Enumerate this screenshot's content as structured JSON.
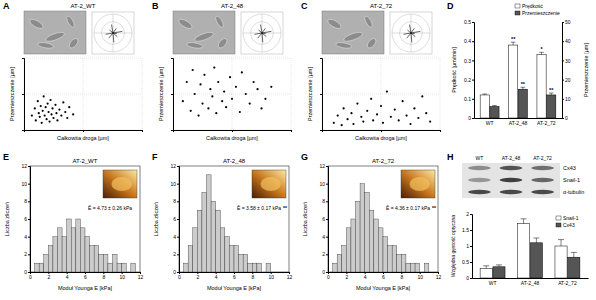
{
  "chart_data": [
    {
      "type": "scatter",
      "title": "AT-2_WT",
      "annotations": [
        "A"
      ],
      "xlabel": "Całkowita droga [µm]",
      "ylabel": "Przemieszczenie [µm]",
      "x": [
        40,
        55,
        60,
        70,
        75,
        80,
        85,
        90,
        95,
        100,
        105,
        110,
        115,
        120,
        125,
        130,
        135,
        140,
        145,
        150,
        160,
        165,
        170,
        180,
        190,
        200,
        210,
        220,
        230,
        250
      ],
      "values": [
        60,
        90,
        40,
        120,
        70,
        55,
        100,
        30,
        80,
        140,
        60,
        95,
        45,
        110,
        75,
        35,
        125,
        65,
        90,
        50,
        105,
        70,
        40,
        85,
        60,
        115,
        75,
        50,
        95,
        65
      ],
      "color": "#000000",
      "marker": "circle",
      "xlim": [
        0,
        600
      ],
      "ylim": [
        0,
        300
      ],
      "xticks": [
        0,
        300,
        600
      ],
      "yticks": [
        0,
        150,
        300
      ],
      "grid": true,
      "tick_labels": false
    },
    {
      "type": "scatter",
      "title": "AT-2_48",
      "annotations": [
        "B"
      ],
      "xlabel": "Całkowita droga [µm]",
      "ylabel": "Przemieszczenie [µm]",
      "x": [
        50,
        70,
        90,
        100,
        110,
        130,
        140,
        150,
        160,
        180,
        190,
        200,
        210,
        220,
        230,
        250,
        260,
        270,
        290,
        300,
        320,
        340,
        350,
        370,
        390,
        410,
        430,
        450,
        470,
        500
      ],
      "values": [
        120,
        200,
        80,
        250,
        150,
        60,
        190,
        110,
        230,
        90,
        170,
        140,
        260,
        70,
        200,
        120,
        160,
        95,
        220,
        130,
        180,
        75,
        240,
        150,
        110,
        200,
        170,
        90,
        130,
        180
      ],
      "color": "#000000",
      "marker": "circle",
      "xlim": [
        0,
        600
      ],
      "ylim": [
        0,
        300
      ],
      "xticks": [
        0,
        300,
        600
      ],
      "yticks": [
        0,
        150,
        300
      ],
      "grid": true,
      "tick_labels": false
    },
    {
      "type": "scatter",
      "title": "AT-2_72",
      "annotations": [
        "C"
      ],
      "xlabel": "Całkowita droga [µm]",
      "ylabel": "Przemieszczenie [µm]",
      "x": [
        60,
        80,
        100,
        110,
        130,
        150,
        160,
        180,
        200,
        210,
        230,
        250,
        260,
        280,
        300,
        310,
        330,
        350,
        370,
        390,
        410,
        430,
        450,
        470,
        490,
        510,
        530,
        550
      ],
      "values": [
        30,
        60,
        20,
        90,
        45,
        70,
        25,
        110,
        55,
        35,
        80,
        130,
        40,
        65,
        100,
        30,
        160,
        55,
        85,
        40,
        120,
        60,
        25,
        90,
        50,
        140,
        70,
        35
      ],
      "color": "#000000",
      "marker": "circle",
      "xlim": [
        0,
        600
      ],
      "ylim": [
        0,
        300
      ],
      "xticks": [
        0,
        300,
        600
      ],
      "yticks": [
        0,
        150,
        300
      ],
      "grid": true,
      "tick_labels": false
    },
    {
      "type": "bar",
      "annotations": [
        "D"
      ],
      "ylabel": "Prędkość [µm/min]",
      "y2label": "Przemieszczenie [µm]",
      "categories": [
        "WT",
        "AT-2_48",
        "AT-2_72"
      ],
      "series": [
        {
          "name": "Prędkość",
          "color": "#ffffff",
          "values": [
            0.12,
            0.38,
            0.33
          ],
          "errors": [
            0.005,
            0.015,
            0.012
          ],
          "significance": [
            null,
            "**",
            "*"
          ]
        },
        {
          "name": "Przemieszczenie",
          "color": "#555555",
          "axis": "y2",
          "values": [
            6,
            15,
            12
          ],
          "errors": [
            0.5,
            1,
            1
          ],
          "significance": [
            null,
            "**",
            "**"
          ]
        }
      ],
      "ylim": [
        0,
        0.5
      ],
      "yticks": [
        0,
        0.1,
        0.2,
        0.3,
        0.4,
        0.5
      ],
      "y2lim": [
        0,
        50
      ],
      "y2ticks": [
        0,
        10,
        20,
        30,
        40,
        50
      ],
      "legend": "upper right"
    },
    {
      "type": "histogram",
      "title": "AT-2_WT",
      "annotations": [
        "E",
        "Ē = 4.73 ± 0.26 kPa"
      ],
      "xlabel": "Moduł Younga E [kPa]",
      "ylabel": "Liczba zliczeń",
      "bins": [
        0,
        0.5,
        1,
        1.5,
        2,
        2.5,
        3,
        3.5,
        4,
        4.5,
        5,
        5.5,
        6,
        6.5,
        7,
        7.5,
        8,
        8.5,
        9,
        9.5,
        10,
        10.5,
        11,
        11.5,
        12
      ],
      "values": [
        0,
        1,
        1,
        2,
        3,
        4,
        5,
        4,
        6,
        5,
        6,
        5,
        4,
        3,
        3,
        2,
        2,
        1,
        2,
        1,
        1,
        0,
        1,
        0
      ],
      "color": "#cccccc",
      "xlim": [
        0,
        12
      ],
      "ylim": [
        0,
        12
      ],
      "xticks": [
        0,
        2,
        4,
        6,
        8,
        10,
        12
      ],
      "yticks": [
        0,
        2,
        4,
        6,
        8,
        10,
        12
      ]
    },
    {
      "type": "histogram",
      "title": "AT-2_48",
      "annotations": [
        "F",
        "Ē = 3.58 ± 0.17 kPa",
        "**"
      ],
      "xlabel": "Moduł Younga E [kPa]",
      "ylabel": "Liczba zliczeń",
      "bins": [
        0,
        0.5,
        1,
        1.5,
        2,
        2.5,
        3,
        3.5,
        4,
        4.5,
        5,
        5.5,
        6,
        6.5,
        7,
        7.5,
        8,
        8.5,
        9,
        9.5,
        10,
        10.5,
        11,
        11.5,
        12
      ],
      "values": [
        0,
        1,
        3,
        5,
        7,
        9,
        11,
        8,
        7,
        5,
        4,
        3,
        3,
        2,
        2,
        1,
        1,
        1,
        0,
        1,
        0,
        0,
        0,
        0
      ],
      "color": "#cccccc",
      "xlim": [
        0,
        12
      ],
      "ylim": [
        0,
        12
      ],
      "xticks": [
        0,
        2,
        4,
        6,
        8,
        10,
        12
      ],
      "yticks": [
        0,
        2,
        4,
        6,
        8,
        10,
        12
      ]
    },
    {
      "type": "histogram",
      "title": "AT-2_72",
      "annotations": [
        "G",
        "Ē = 4.36 ± 0.17 kPa",
        "**"
      ],
      "xlabel": "Moduł Younga E [kPa]",
      "ylabel": "Liczba zliczeń",
      "bins": [
        0,
        0.5,
        1,
        1.5,
        2,
        2.5,
        3,
        3.5,
        4,
        4.5,
        5,
        5.5,
        6,
        6.5,
        7,
        7.5,
        8,
        8.5,
        9,
        9.5,
        10,
        10.5,
        11,
        11.5,
        12
      ],
      "values": [
        0,
        1,
        2,
        3,
        5,
        6,
        8,
        10,
        9,
        7,
        6,
        5,
        4,
        3,
        3,
        2,
        2,
        1,
        1,
        1,
        0,
        1,
        0,
        0
      ],
      "color": "#cccccc",
      "xlim": [
        0,
        12
      ],
      "ylim": [
        0,
        12
      ],
      "xticks": [
        0,
        2,
        4,
        6,
        8,
        10,
        12
      ],
      "yticks": [
        0,
        2,
        4,
        6,
        8,
        10,
        12
      ]
    },
    {
      "type": "bar",
      "annotations": [
        "H"
      ],
      "blot_rows": [
        "Cx43",
        "Snail-1",
        "α-tubulin"
      ],
      "ylabel": "Względna gęstość optyczna",
      "categories": [
        "WT",
        "AT-2_48",
        "AT-2_72"
      ],
      "series": [
        {
          "name": "Snail-1",
          "color": "#ffffff",
          "values": [
            0.3,
            1.7,
            1.0
          ],
          "errors": [
            0.08,
            0.15,
            0.2
          ]
        },
        {
          "name": "Cx43",
          "color": "#555555",
          "values": [
            0.35,
            1.1,
            0.65
          ],
          "errors": [
            0.06,
            0.15,
            0.15
          ]
        }
      ],
      "ylim": [
        0,
        2
      ],
      "yticks": [
        0,
        0.5,
        1,
        1.5,
        2
      ],
      "legend": "upper right"
    }
  ]
}
